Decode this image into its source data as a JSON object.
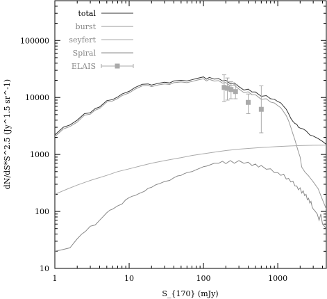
{
  "chart_data": {
    "type": "line",
    "xlabel": "S_{170} (mJy)",
    "ylabel": "dN/dS*S^2.5 (Jy^1.5 sr^-1)",
    "xscale": "log",
    "yscale": "log",
    "xlim": [
      1,
      4500
    ],
    "ylim": [
      10,
      500000
    ],
    "x_ticks": [
      {
        "value": 1,
        "label": "1"
      },
      {
        "value": 10,
        "label": "10"
      },
      {
        "value": 100,
        "label": "100"
      },
      {
        "value": 1000,
        "label": "1000"
      }
    ],
    "y_ticks": [
      {
        "value": 10,
        "label": "10"
      },
      {
        "value": 100,
        "label": "100"
      },
      {
        "value": 1000,
        "label": "1000"
      },
      {
        "value": 10000,
        "label": "10000"
      },
      {
        "value": 100000,
        "label": "100000"
      }
    ],
    "grid": false,
    "legend_position": "top-left",
    "series": [
      {
        "name": "total",
        "color": "#333333",
        "x": [
          1,
          1.3,
          1.6,
          2,
          2.5,
          3,
          3.5,
          4,
          5,
          6,
          7,
          8,
          10,
          12,
          15,
          18,
          20,
          25,
          30,
          35,
          40,
          50,
          60,
          70,
          80,
          100,
          110,
          120,
          140,
          160,
          180,
          200,
          230,
          260,
          300,
          350,
          400,
          450,
          500,
          600,
          700,
          800,
          900,
          1000,
          1100,
          1200,
          1300,
          1400,
          1500,
          1600,
          1700,
          1800,
          1900,
          2000,
          2200,
          2400,
          2700,
          3000,
          3500,
          4000,
          4500
        ],
        "y": [
          2200,
          3000,
          3300,
          4000,
          5200,
          5400,
          6400,
          6800,
          8800,
          9200,
          10200,
          11500,
          12800,
          15000,
          17000,
          17300,
          16500,
          17800,
          18500,
          18000,
          19500,
          20000,
          19500,
          20500,
          21500,
          23000,
          21000,
          22500,
          21000,
          21500,
          19500,
          20000,
          17500,
          18000,
          15500,
          13500,
          14000,
          12500,
          12500,
          10500,
          10800,
          9500,
          9300,
          8500,
          8000,
          7000,
          6200,
          5200,
          4300,
          3800,
          3500,
          3400,
          3000,
          2900,
          2800,
          2600,
          2200,
          2100,
          1900,
          1700,
          1500
        ]
      },
      {
        "name": "burst",
        "color": "#999999",
        "x": [
          1,
          1.3,
          1.6,
          2,
          2.5,
          3,
          3.5,
          4,
          5,
          6,
          7,
          8,
          10,
          12,
          15,
          18,
          20,
          25,
          30,
          35,
          40,
          50,
          60,
          70,
          80,
          100,
          110,
          120,
          140,
          160,
          180,
          200,
          230,
          260,
          300,
          350,
          400,
          450,
          500,
          600,
          700,
          800,
          900,
          1000,
          1100,
          1200,
          1300,
          1400,
          1500,
          1600,
          1700,
          1800,
          1900,
          2000,
          2100,
          2300,
          2600,
          3000,
          3500,
          4000,
          4500
        ],
        "y": [
          2050,
          2800,
          3100,
          3700,
          4900,
          5100,
          6000,
          6400,
          8300,
          8700,
          9600,
          10800,
          12000,
          14000,
          16000,
          16300,
          15500,
          16700,
          17300,
          16900,
          18200,
          18700,
          18200,
          19100,
          20000,
          21300,
          19500,
          20800,
          19400,
          19800,
          17900,
          18300,
          16000,
          16400,
          14100,
          12200,
          12600,
          11200,
          11200,
          9300,
          9500,
          8300,
          8000,
          7200,
          6600,
          5600,
          4800,
          3900,
          3000,
          2300,
          1800,
          1400,
          1100,
          900,
          600,
          500,
          420,
          330,
          250,
          160,
          110
        ]
      },
      {
        "name": "seyfert",
        "color": "#aaaaaa",
        "x": [
          1,
          1.5,
          2,
          3,
          5,
          7,
          10,
          15,
          20,
          30,
          50,
          70,
          100,
          150,
          200,
          300,
          500,
          700,
          1000,
          1500,
          2000,
          3000,
          4500
        ],
        "y": [
          200,
          250,
          290,
          350,
          430,
          500,
          560,
          640,
          700,
          780,
          880,
          960,
          1030,
          1110,
          1170,
          1240,
          1300,
          1340,
          1380,
          1410,
          1430,
          1450,
          1460
        ]
      },
      {
        "name": "Spiral",
        "color": "#888888",
        "x": [
          1,
          1.2,
          1.4,
          1.6,
          1.8,
          2,
          2.3,
          2.6,
          3,
          3.5,
          4,
          4.5,
          5,
          5.5,
          6,
          7,
          8,
          9,
          10,
          11,
          12,
          14,
          16,
          18,
          20,
          23,
          26,
          30,
          35,
          40,
          45,
          50,
          55,
          60,
          70,
          80,
          90,
          100,
          110,
          120,
          140,
          160,
          180,
          200,
          230,
          260,
          300,
          350,
          400,
          450,
          500,
          550,
          600,
          700,
          800,
          900,
          1000,
          1100,
          1200,
          1300,
          1400,
          1500,
          1600,
          1700,
          1800,
          1900,
          2000,
          2100,
          2200,
          2300,
          2400,
          2500,
          2600,
          2700,
          2800,
          2900,
          3000,
          3200,
          3400,
          3600,
          3800,
          4000,
          4500
        ],
        "y": [
          20,
          21,
          22,
          23,
          28,
          33,
          40,
          45,
          55,
          58,
          70,
          82,
          95,
          105,
          110,
          125,
          135,
          160,
          175,
          185,
          190,
          210,
          225,
          255,
          265,
          295,
          310,
          335,
          350,
          390,
          420,
          430,
          460,
          480,
          500,
          540,
          575,
          610,
          625,
          650,
          700,
          700,
          760,
          690,
          780,
          700,
          780,
          700,
          730,
          640,
          680,
          600,
          640,
          550,
          560,
          480,
          480,
          430,
          450,
          370,
          380,
          330,
          340,
          280,
          280,
          240,
          260,
          210,
          230,
          190,
          200,
          160,
          170,
          140,
          150,
          120,
          110,
          100,
          90,
          70,
          90,
          60,
          50
        ]
      },
      {
        "name": "ELAIS",
        "color": "#aaaaaa",
        "type": "points_with_errors",
        "points": [
          {
            "x": 190,
            "y": 15000,
            "yerr_low": 8500,
            "yerr_high": 25000
          },
          {
            "x": 210,
            "y": 14500,
            "yerr_low": 9000,
            "yerr_high": 22000
          },
          {
            "x": 235,
            "y": 13800,
            "yerr_low": 9500,
            "yerr_high": 19000
          },
          {
            "x": 270,
            "y": 12700,
            "yerr_low": 9500,
            "yerr_high": 17000
          },
          {
            "x": 400,
            "y": 8200,
            "yerr_low": 5200,
            "yerr_high": 11500
          },
          {
            "x": 600,
            "y": 6200,
            "yerr_low": 2400,
            "yerr_high": 16000
          }
        ]
      }
    ]
  }
}
